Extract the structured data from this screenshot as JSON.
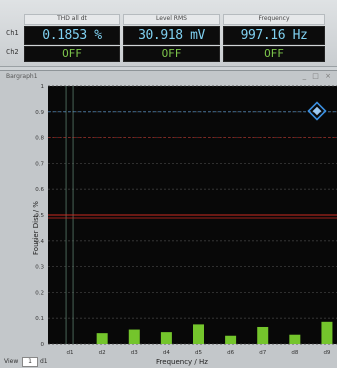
{
  "readouts": {
    "channel_labels": [
      "Ch1",
      "Ch2"
    ],
    "columns": [
      {
        "header": "THD all dt",
        "value": "0.1853 %",
        "state": "OFF"
      },
      {
        "header": "Level RMS",
        "value": "30.918 mV",
        "state": "OFF"
      },
      {
        "header": "Frequency",
        "value": "997.16 Hz",
        "state": "OFF"
      }
    ]
  },
  "graph": {
    "window_title": "Bargraph1",
    "controls": "_ □ ×",
    "ylabel": "Fourier Dist / %",
    "xlabel": "Frequency / Hz",
    "icon": "marker-diamond-icon"
  },
  "bottom": {
    "view_label": "View",
    "view_value": "1",
    "trace_label": "d1"
  },
  "chart_data": {
    "type": "bar",
    "categories": [
      "d1",
      "d2",
      "d3",
      "d4",
      "d5",
      "d6",
      "d7",
      "d8",
      "d9"
    ],
    "yticks": [
      "1",
      "0.9",
      "0.8",
      "0.7",
      "0.6",
      "0.5",
      "0.4",
      "0.3",
      "0.2",
      "0.1",
      "0"
    ],
    "ylim": [
      0,
      1
    ],
    "series": [
      {
        "values": [
          0,
          0.042,
          0.056,
          0.046,
          0.076,
          0.032,
          0.066,
          0.036,
          0.086
        ]
      }
    ],
    "colors": {
      "bars": "#74c52c",
      "background": "#080808",
      "grid": "#3c3c3c",
      "limit_red": "#cc2a20",
      "limit_blue": "#5b9bd5",
      "axis_text": "#d8d8d8"
    },
    "grid": true
  }
}
